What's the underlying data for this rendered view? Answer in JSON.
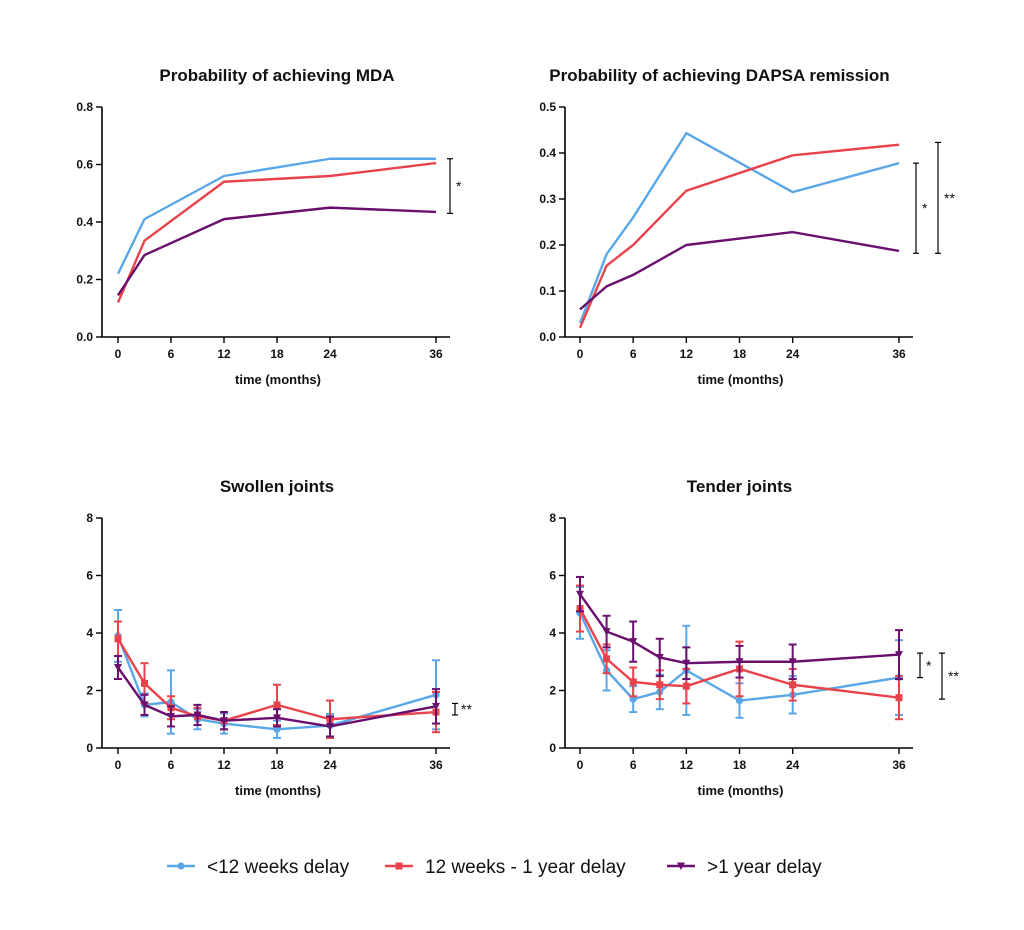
{
  "colors": {
    "under12w": "#5aa7e8",
    "w12to1y": "#e8434a",
    "over1y": "#6a0f6e",
    "axis": "#000000"
  },
  "legend": [
    {
      "label": "<12 weeks delay",
      "series": "under12w",
      "marker": "circle"
    },
    {
      "label": "12 weeks - 1 year delay",
      "series": "w12to1y",
      "marker": "square"
    },
    {
      "label": ">1 year delay",
      "series": "over1y",
      "marker": "triangle-down"
    }
  ],
  "chart_data": [
    {
      "type": "line",
      "title": "Probability of achieving MDA",
      "xlabel": "time (months)",
      "ylabel": "",
      "xlim": [
        0,
        36
      ],
      "ylim": [
        0,
        0.8
      ],
      "xticks": [
        0,
        6,
        12,
        18,
        24,
        36
      ],
      "yticks": [
        "0.0",
        "0.2",
        "0.4",
        "0.6",
        "0.8"
      ],
      "markers": false,
      "series": [
        {
          "key": "under12w",
          "x": [
            0,
            3,
            12,
            24,
            36
          ],
          "y": [
            0.22,
            0.41,
            0.56,
            0.62,
            0.62
          ]
        },
        {
          "key": "w12to1y",
          "x": [
            0,
            3,
            12,
            24,
            36
          ],
          "y": [
            0.12,
            0.335,
            0.54,
            0.56,
            0.605
          ]
        },
        {
          "key": "over1y",
          "x": [
            0,
            3,
            12,
            24,
            36
          ],
          "y": [
            0.145,
            0.285,
            0.41,
            0.45,
            0.435
          ]
        }
      ],
      "significance": [
        {
          "label": "*",
          "range": [
            0.43,
            0.62
          ]
        }
      ]
    },
    {
      "type": "line",
      "title": "Probability of achieving DAPSA remission",
      "xlabel": "time (months)",
      "ylabel": "",
      "xlim": [
        0,
        36
      ],
      "ylim": [
        0,
        0.5
      ],
      "xticks": [
        0,
        6,
        12,
        18,
        24,
        36
      ],
      "yticks": [
        "0.0",
        "0.1",
        "0.2",
        "0.3",
        "0.4",
        "0.5"
      ],
      "markers": false,
      "series": [
        {
          "key": "under12w",
          "x": [
            0,
            3,
            6,
            12,
            24,
            36
          ],
          "y": [
            0.03,
            0.18,
            0.26,
            0.443,
            0.315,
            0.378
          ]
        },
        {
          "key": "w12to1y",
          "x": [
            0,
            3,
            6,
            12,
            24,
            36
          ],
          "y": [
            0.02,
            0.155,
            0.2,
            0.318,
            0.395,
            0.418
          ]
        },
        {
          "key": "over1y",
          "x": [
            0,
            3,
            6,
            12,
            24,
            36
          ],
          "y": [
            0.06,
            0.11,
            0.135,
            0.2,
            0.228,
            0.187
          ]
        }
      ],
      "significance": [
        {
          "label": "*",
          "range": [
            0.182,
            0.378
          ]
        },
        {
          "label": "**",
          "range": [
            0.182,
            0.423
          ]
        }
      ]
    },
    {
      "type": "line",
      "title": "Swollen joints",
      "xlabel": "time (months)",
      "ylabel": "",
      "xlim": [
        0,
        36
      ],
      "ylim": [
        0,
        8
      ],
      "xticks": [
        0,
        6,
        12,
        18,
        24,
        36
      ],
      "yticks": [
        "0",
        "2",
        "4",
        "6",
        "8"
      ],
      "markers": true,
      "series": [
        {
          "key": "under12w",
          "x": [
            0,
            3,
            6,
            9,
            12,
            18,
            24,
            36
          ],
          "y": [
            3.9,
            1.5,
            1.6,
            1.0,
            0.85,
            0.65,
            0.78,
            1.85
          ],
          "err": [
            0.9,
            0.4,
            1.1,
            0.35,
            0.35,
            0.3,
            0.4,
            1.2
          ]
        },
        {
          "key": "w12to1y",
          "x": [
            0,
            3,
            6,
            9,
            12,
            18,
            24,
            36
          ],
          "y": [
            3.8,
            2.25,
            1.4,
            1.1,
            0.95,
            1.5,
            1.0,
            1.25
          ],
          "err": [
            0.6,
            0.7,
            0.4,
            0.3,
            0.3,
            0.7,
            0.65,
            0.7
          ]
        },
        {
          "key": "over1y",
          "x": [
            0,
            3,
            6,
            9,
            12,
            18,
            24,
            36
          ],
          "y": [
            2.8,
            1.5,
            1.1,
            1.15,
            0.95,
            1.05,
            0.75,
            1.45
          ],
          "err": [
            0.4,
            0.35,
            0.35,
            0.35,
            0.3,
            0.3,
            0.35,
            0.6
          ]
        }
      ],
      "significance": [
        {
          "label": "**",
          "range": [
            1.15,
            1.55
          ]
        }
      ]
    },
    {
      "type": "line",
      "title": "Tender joints",
      "xlabel": "time (months)",
      "ylabel": "",
      "xlim": [
        0,
        36
      ],
      "ylim": [
        0,
        8
      ],
      "xticks": [
        0,
        6,
        12,
        18,
        24,
        36
      ],
      "yticks": [
        "0",
        "2",
        "4",
        "6",
        "8"
      ],
      "markers": true,
      "series": [
        {
          "key": "under12w",
          "x": [
            0,
            3,
            6,
            9,
            12,
            18,
            24,
            36
          ],
          "y": [
            4.7,
            2.7,
            1.7,
            1.95,
            2.7,
            1.65,
            1.85,
            2.45
          ],
          "err": [
            0.9,
            0.7,
            0.45,
            0.6,
            1.55,
            0.6,
            0.65,
            1.3
          ]
        },
        {
          "key": "w12to1y",
          "x": [
            0,
            3,
            6,
            9,
            12,
            18,
            24,
            36
          ],
          "y": [
            4.85,
            3.1,
            2.3,
            2.2,
            2.15,
            2.75,
            2.2,
            1.75
          ],
          "err": [
            0.8,
            0.5,
            0.5,
            0.5,
            0.6,
            0.95,
            0.55,
            0.75
          ]
        },
        {
          "key": "over1y",
          "x": [
            0,
            3,
            6,
            9,
            12,
            18,
            24,
            36
          ],
          "y": [
            5.35,
            4.05,
            3.7,
            3.15,
            2.95,
            3.0,
            3.0,
            3.25
          ],
          "err": [
            0.6,
            0.55,
            0.7,
            0.65,
            0.55,
            0.55,
            0.6,
            0.85
          ]
        }
      ],
      "significance": [
        {
          "label": "*",
          "range": [
            2.45,
            3.3
          ]
        },
        {
          "label": "**",
          "range": [
            1.7,
            3.3
          ]
        }
      ]
    }
  ]
}
